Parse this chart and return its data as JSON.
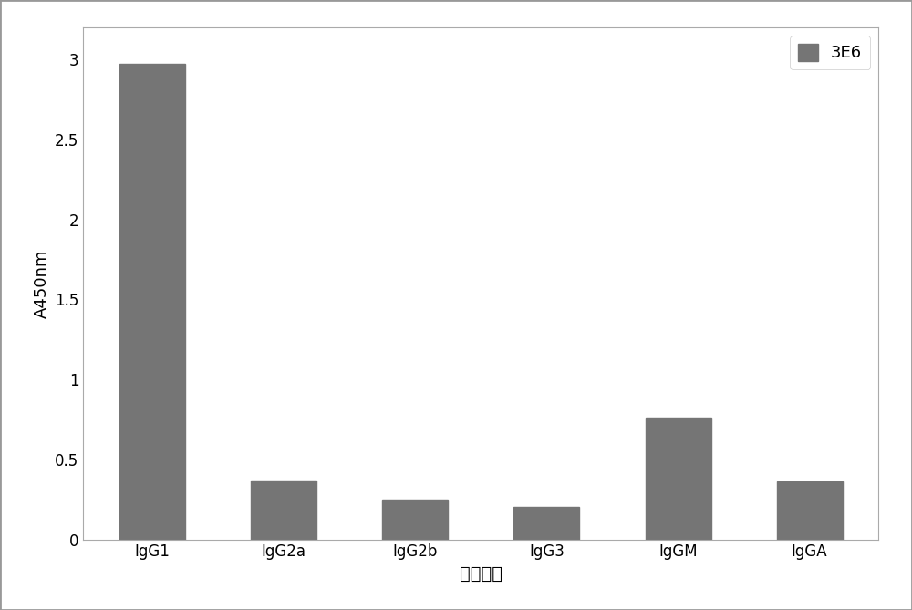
{
  "categories": [
    "IgG1",
    "IgG2a",
    "IgG2b",
    "IgG3",
    "IgGM",
    "IgGA"
  ],
  "values": [
    2.97,
    0.37,
    0.25,
    0.2,
    0.76,
    0.36
  ],
  "bar_color": "#757575",
  "ylabel": "A450nm",
  "xlabel": "抗体亚型",
  "ylim": [
    0,
    3.2
  ],
  "yticks": [
    0,
    0.5,
    1.0,
    1.5,
    2.0,
    2.5,
    3.0
  ],
  "ytick_labels": [
    "0",
    "0.5",
    "1",
    "1.5",
    "2",
    "2.5",
    "3"
  ],
  "legend_label": "3E6",
  "legend_color": "#757575",
  "bar_width": 0.5,
  "background_color": "#ffffff",
  "border_color": "#aaaaaa",
  "ylabel_fontsize": 13,
  "xlabel_fontsize": 14,
  "tick_fontsize": 12,
  "legend_fontsize": 13,
  "figure_border_color": "#999999"
}
